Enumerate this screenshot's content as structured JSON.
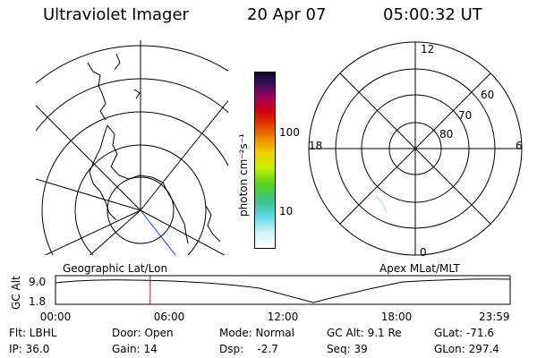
{
  "header": {
    "title": "Ultraviolet Imager",
    "date": "20 Apr 07",
    "time": "05:00:32 UT"
  },
  "geo_panel": {
    "label": "Geographic Lat/Lon"
  },
  "colorbar": {
    "unit_label": "photon cm⁻²s⁻¹",
    "tick_100": "100",
    "tick_10": "10"
  },
  "apex_panel": {
    "label": "Apex MLat/MLT",
    "mlt_top": "12",
    "mlt_bottom": "0",
    "mlt_left": "18",
    "mlt_right": "6",
    "lat_60": "60",
    "lat_70": "70",
    "lat_80": "80"
  },
  "orbit_plot": {
    "ylabel": "GC Alt",
    "ytick_high": "9.0",
    "ytick_low": "1.8",
    "xticks": [
      "00:00",
      "06:00",
      "12:00",
      "18:00",
      "23:59"
    ],
    "current_time_hours": 5.0
  },
  "info": {
    "flt": "Flt: LBHL",
    "ip": "IP: 36.0",
    "door": "Door: Open",
    "gain": "Gain: 14",
    "mode": "Mode: Normal",
    "dsp": "Dsp:    -2.7",
    "gc_alt": "GC Alt: 9.1 Re",
    "seq": "Seq: 39",
    "glat": "GLat: -71.6",
    "glon": "GLon: 297.4"
  },
  "colors": {
    "current_time_marker": "#e00000",
    "coast": "#000000",
    "track": "#1e3cc8"
  }
}
